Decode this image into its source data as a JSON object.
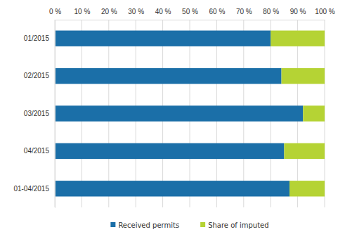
{
  "chart_data": {
    "type": "bar",
    "orientation": "horizontal",
    "stacked": true,
    "categories": [
      "01/2015",
      "02/2015",
      "03/2015",
      "04/2015",
      "01-04/2015"
    ],
    "series": [
      {
        "name": "Received permits",
        "color": "#1b6fa8",
        "values": [
          80,
          84,
          92,
          85,
          87
        ]
      },
      {
        "name": "Share of imputed",
        "color": "#b5d334",
        "values": [
          20,
          16,
          8,
          15,
          13
        ]
      }
    ],
    "xlim": [
      0,
      100
    ],
    "xticks": [
      {
        "value": 0,
        "label": "0 %"
      },
      {
        "value": 10,
        "label": "10 %"
      },
      {
        "value": 20,
        "label": "20 %"
      },
      {
        "value": 30,
        "label": "30 %"
      },
      {
        "value": 40,
        "label": "40 %"
      },
      {
        "value": 50,
        "label": "50 %"
      },
      {
        "value": 60,
        "label": "60 %"
      },
      {
        "value": 70,
        "label": "70 %"
      },
      {
        "value": 80,
        "label": "80 %"
      },
      {
        "value": 90,
        "label": "90 %"
      },
      {
        "value": 100,
        "label": "100 %"
      }
    ],
    "grid": true,
    "legend": "bottom"
  }
}
